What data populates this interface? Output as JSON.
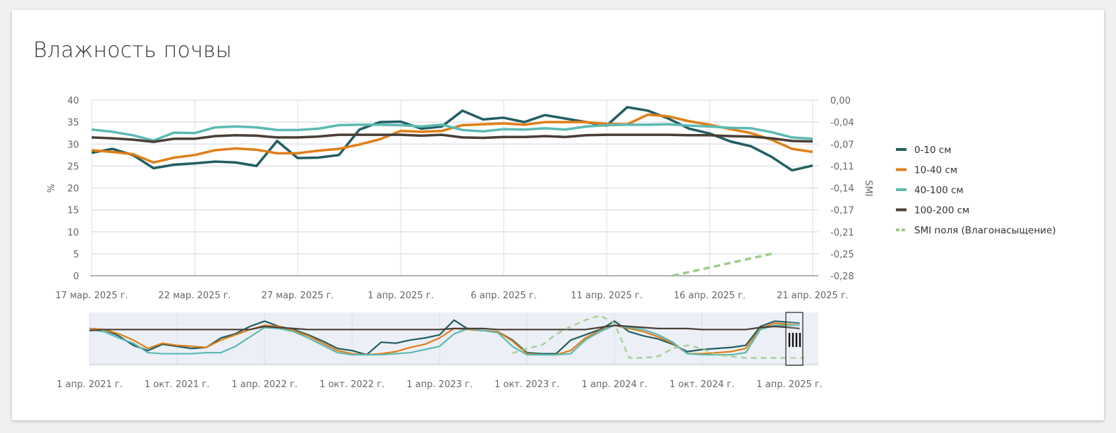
{
  "title": "Влажность почвы",
  "chart_data": {
    "type": "line",
    "title": "Влажность почвы",
    "ylabel": "%",
    "y2label": "SMI",
    "ylim": [
      0,
      40
    ],
    "y2lim": [
      -0.28,
      0
    ],
    "grid": true,
    "legend_position": "right",
    "yticks": [
      "0",
      "5",
      "10",
      "15",
      "20",
      "25",
      "30",
      "35",
      "40"
    ],
    "y2ticks": [
      "-0,28",
      "-0,25",
      "-0,21",
      "-0,17",
      "-0,14",
      "-0,11",
      "-0,07",
      "-0,04",
      "0,00"
    ],
    "xticks": [
      {
        "label": "17 мар. 2025 г.",
        "day": 0
      },
      {
        "label": "22 мар. 2025 г.",
        "day": 5
      },
      {
        "label": "27 мар. 2025 г.",
        "day": 10
      },
      {
        "label": "1 апр. 2025 г.",
        "day": 15
      },
      {
        "label": "6 апр. 2025 г.",
        "day": 20
      },
      {
        "label": "11 апр. 2025 г.",
        "day": 25
      },
      {
        "label": "16 апр. 2025 г.",
        "day": 30
      },
      {
        "label": "21 апр. 2025 г.",
        "day": 35
      }
    ],
    "x_start": "2025-03-17",
    "x_step": "1 day",
    "series": [
      {
        "name": "0-10 см",
        "color": "#235e63",
        "values": [
          28,
          28.9,
          27.5,
          24.5,
          25.3,
          25.6,
          26,
          25.8,
          25,
          30.7,
          26.8,
          26.9,
          27.5,
          33.3,
          35,
          35.1,
          33.5,
          34,
          37.6,
          35.6,
          36,
          35,
          36.6,
          35.8,
          35,
          34.2,
          38.4,
          37.6,
          35.8,
          33.5,
          32.4,
          30.6,
          29.5,
          27.1,
          24,
          25.1
        ]
      },
      {
        "name": "10-40 см",
        "color": "#e07f18",
        "values": [
          28.6,
          28.2,
          27.7,
          25.8,
          26.9,
          27.5,
          28.6,
          29,
          28.7,
          27.9,
          27.9,
          28.5,
          28.9,
          29.9,
          31.1,
          33,
          32.8,
          33,
          34.3,
          34.5,
          34.7,
          34.4,
          35,
          35,
          35,
          34.6,
          34.5,
          36.7,
          36.3,
          35.2,
          34.4,
          33.4,
          32.5,
          31,
          28.9,
          28.2
        ]
      },
      {
        "name": "40-100 см",
        "color": "#5cbab2",
        "values": [
          33.3,
          32.8,
          32,
          30.8,
          32.6,
          32.5,
          33.8,
          34,
          33.8,
          33.2,
          33.2,
          33.5,
          34.3,
          34.4,
          34.4,
          34.3,
          34,
          34.4,
          33.2,
          32.9,
          33.4,
          33.3,
          33.6,
          33.3,
          34,
          34.3,
          34.4,
          34.4,
          34.5,
          34.2,
          34,
          33.7,
          33.6,
          32.7,
          31.5,
          31.2
        ]
      },
      {
        "name": "100-200 см",
        "color": "#4a3f38",
        "values": [
          31.5,
          31.3,
          31,
          30.5,
          31.2,
          31.2,
          31.8,
          32,
          31.9,
          31.5,
          31.5,
          31.7,
          32.1,
          32.1,
          32.1,
          32.1,
          31.9,
          32.1,
          31.5,
          31.4,
          31.6,
          31.6,
          31.8,
          31.6,
          32,
          32.1,
          32.1,
          32.1,
          32.1,
          32,
          32,
          31.8,
          31.7,
          31.3,
          30.7,
          30.6
        ]
      },
      {
        "name": "SMI поля (Влагонасыщение)",
        "color": "#9ccb8a",
        "dashed": true,
        "axis": "y2",
        "points": [
          {
            "day": 28.2,
            "value": -0.28
          },
          {
            "day": 33,
            "value": -0.245
          }
        ]
      }
    ],
    "navigator": {
      "xticks": [
        "1 апр. 2021 г.",
        "1 окт. 2021 г.",
        "1 апр. 2022 г.",
        "1 окт. 2022 г.",
        "1 апр. 2023 г.",
        "1 окт. 2023 г.",
        "1 апр. 2024 г.",
        "1 окт. 2024 г.",
        "1 апр. 2025 г."
      ],
      "x_start": "2021-04",
      "x_step": "1 month",
      "selected_range": [
        "2025-03-17",
        "2025-04-21"
      ],
      "series": [
        {
          "name": "0-10 см",
          "values": [
            31,
            30,
            24,
            15,
            10,
            16,
            14,
            12,
            13,
            22,
            26,
            33,
            38,
            33,
            30,
            25,
            19,
            12,
            10,
            6,
            18,
            17,
            20,
            22,
            25,
            39,
            30,
            29,
            28,
            20,
            8,
            7,
            7,
            20,
            25,
            30,
            38,
            28,
            24,
            21,
            16,
            9,
            11,
            12,
            13,
            15,
            33,
            38,
            37,
            36
          ]
        },
        {
          "name": "10-40 см",
          "values": [
            31,
            30,
            26,
            20,
            12,
            17,
            15,
            14,
            13,
            20,
            25,
            30,
            34,
            33,
            29,
            24,
            17,
            10,
            7,
            6,
            7,
            9,
            13,
            16,
            22,
            31,
            30,
            29,
            28,
            19,
            7,
            6,
            6,
            10,
            22,
            29,
            34,
            31,
            28,
            23,
            17,
            7,
            7,
            8,
            9,
            12,
            31,
            36,
            35,
            34
          ]
        },
        {
          "name": "40-100 см",
          "values": [
            30,
            28,
            22,
            17,
            8,
            7,
            7,
            7,
            8,
            8,
            14,
            23,
            32,
            31,
            28,
            22,
            15,
            8,
            6,
            6,
            6,
            7,
            8,
            11,
            14,
            26,
            31,
            29,
            27,
            14,
            6,
            6,
            6,
            7,
            20,
            28,
            34,
            32,
            30,
            25,
            18,
            7,
            6,
            6,
            6,
            8,
            30,
            34,
            34,
            34
          ]
        },
        {
          "name": "100-200 см",
          "values": [
            29,
            30,
            30,
            30,
            30,
            30,
            30,
            30,
            30,
            30,
            30,
            30,
            33,
            32,
            31,
            30,
            30,
            30,
            30,
            30,
            30,
            30,
            30,
            30,
            30,
            31,
            31,
            31,
            30,
            30,
            30,
            30,
            30,
            30,
            30,
            32,
            34,
            33,
            32,
            31,
            31,
            31,
            30,
            30,
            30,
            30,
            32,
            33,
            32,
            31
          ]
        },
        {
          "name": "SMI поля (Влагонасыщение)",
          "start_month": 29,
          "values": [
            -0.25,
            -0.22,
            -0.2,
            -0.13,
            -0.08,
            -0.04,
            -0.01,
            -0.06,
            -0.28,
            -0.28,
            -0.27,
            -0.22,
            -0.2,
            -0.22,
            -0.26,
            -0.27,
            -0.28,
            -0.28,
            -0.28,
            -0.28,
            -0.28
          ]
        }
      ]
    }
  }
}
